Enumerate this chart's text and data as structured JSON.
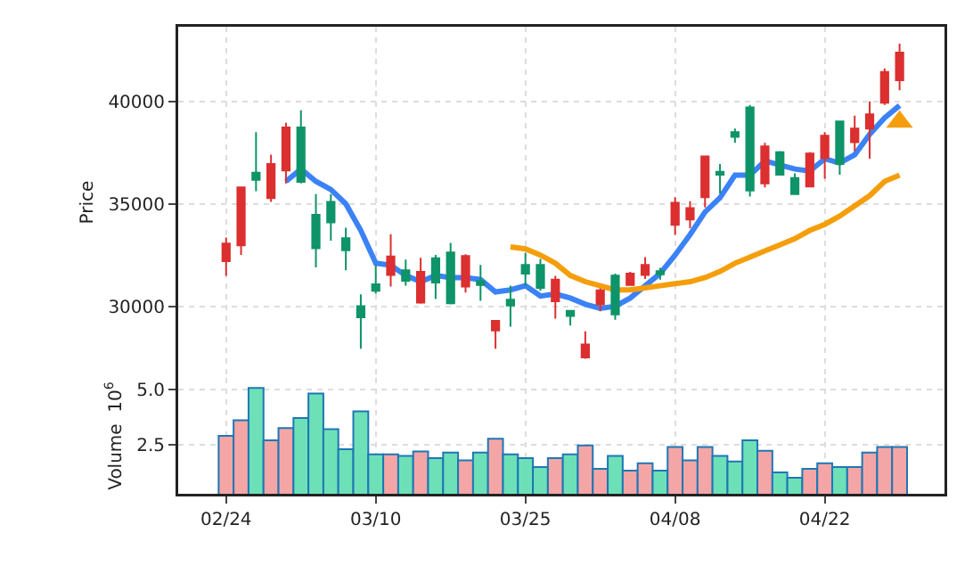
{
  "chart_data": [
    {
      "type": "candlestick",
      "ylabel": "Price",
      "categories": [
        null,
        null,
        null,
        null,
        null,
        null,
        null,
        null,
        null,
        null,
        null,
        null,
        null,
        null,
        null,
        null,
        null,
        null,
        null,
        null,
        null,
        null,
        null,
        null,
        null,
        null,
        null,
        null,
        null,
        null,
        null,
        null,
        null,
        null,
        null,
        null,
        null,
        null,
        null,
        null,
        null,
        null,
        null,
        null,
        null,
        null
      ],
      "ohlc": [
        [
          32200,
          33350,
          31480,
          33060
        ],
        [
          32970,
          35850,
          32510,
          35800
        ],
        [
          36520,
          38500,
          35620,
          36170
        ],
        [
          35280,
          37400,
          35100,
          36950
        ],
        [
          36630,
          38960,
          36000,
          38730
        ],
        [
          38730,
          39570,
          36000,
          36080
        ],
        [
          34470,
          35480,
          31900,
          32830
        ],
        [
          35100,
          35480,
          33200,
          34100
        ],
        [
          33320,
          33840,
          31760,
          32740
        ],
        [
          30000,
          30580,
          27930,
          29460
        ],
        [
          31070,
          32020,
          30610,
          30750
        ],
        [
          31530,
          33520,
          30960,
          32430
        ],
        [
          31760,
          32280,
          31010,
          31250
        ],
        [
          30180,
          32370,
          30120,
          31680
        ],
        [
          32340,
          32510,
          30350,
          31160
        ],
        [
          32630,
          33090,
          30090,
          30150
        ],
        [
          30960,
          32540,
          30670,
          32450
        ],
        [
          31220,
          32020,
          30270,
          31040
        ],
        [
          28820,
          29290,
          27930,
          29290
        ],
        [
          30320,
          31010,
          29000,
          30040
        ],
        [
          32020,
          32600,
          31010,
          31590
        ],
        [
          32020,
          32310,
          30760,
          30900
        ],
        [
          30240,
          31480,
          29400,
          31300
        ],
        [
          29780,
          29800,
          29060,
          29520
        ],
        [
          27500,
          28770,
          27440,
          28130
        ],
        [
          30090,
          30870,
          29750,
          30780
        ],
        [
          31500,
          31590,
          29340,
          29600
        ],
        [
          31040,
          31680,
          31040,
          31590
        ],
        [
          31530,
          32400,
          31330,
          32020
        ],
        [
          31710,
          31880,
          31300,
          31560
        ],
        [
          33980,
          35330,
          33490,
          35050
        ],
        [
          34240,
          35130,
          33810,
          34790
        ],
        [
          35330,
          37320,
          34820,
          37320
        ],
        [
          36570,
          36950,
          35510,
          36430
        ],
        [
          38500,
          38680,
          37980,
          38270
        ],
        [
          39710,
          39830,
          35360,
          35650
        ],
        [
          36000,
          37980,
          35800,
          37810
        ],
        [
          37520,
          37580,
          36430,
          36430
        ],
        [
          36260,
          36490,
          35480,
          35480
        ],
        [
          35850,
          37520,
          35820,
          37460
        ],
        [
          37240,
          38500,
          36230,
          38330
        ],
        [
          39020,
          39050,
          36430,
          36950
        ],
        [
          38010,
          39310,
          37580,
          38680
        ],
        [
          38680,
          40000,
          37210,
          39370
        ],
        [
          39940,
          41610,
          39830,
          41440
        ],
        [
          41040,
          42820,
          40550,
          42390
        ]
      ],
      "colors": [
        "#dc2f2f",
        "#dc2f2f",
        "#0e9468",
        "#dc2f2f",
        "#dc2f2f",
        "#0e9468",
        "#0e9468",
        "#0e9468",
        "#0e9468",
        "#0e9468",
        "#0e9468",
        "#dc2f2f",
        "#0e9468",
        "#dc2f2f",
        "#0e9468",
        "#0e9468",
        "#dc2f2f",
        "#0e9468",
        "#dc2f2f",
        "#0e9468",
        "#0e9468",
        "#0e9468",
        "#dc2f2f",
        "#0e9468",
        "#dc2f2f",
        "#dc2f2f",
        "#0e9468",
        "#dc2f2f",
        "#dc2f2f",
        "#0e9468",
        "#dc2f2f",
        "#dc2f2f",
        "#dc2f2f",
        "#0e9468",
        "#0e9468",
        "#0e9468",
        "#dc2f2f",
        "#0e9468",
        "#0e9468",
        "#dc2f2f",
        "#dc2f2f",
        "#0e9468",
        "#dc2f2f",
        "#dc2f2f",
        "#dc2f2f",
        "#dc2f2f"
      ],
      "series": [
        {
          "type": "line",
          "color": "#3b82f6",
          "values": [
            null,
            null,
            null,
            null,
            36100,
            36700,
            36100,
            35700,
            35000,
            33700,
            32100,
            32000,
            31500,
            31200,
            31500,
            31400,
            31400,
            31300,
            30700,
            30800,
            31000,
            30500,
            30600,
            30400,
            30100,
            29900,
            30000,
            30400,
            31000,
            31600,
            32500,
            33500,
            34600,
            35300,
            36400,
            36400,
            37100,
            36900,
            36700,
            36600,
            37200,
            37000,
            37400,
            38400,
            39200,
            39800
          ]
        },
        {
          "type": "line",
          "color": "#f59e0b",
          "values": [
            null,
            null,
            null,
            null,
            null,
            null,
            null,
            null,
            null,
            null,
            null,
            null,
            null,
            null,
            null,
            null,
            null,
            null,
            null,
            32900,
            32800,
            32500,
            32100,
            31500,
            31200,
            31000,
            30800,
            30800,
            30900,
            31000,
            31100,
            31200,
            31400,
            31700,
            32100,
            32400,
            32700,
            33000,
            33300,
            33700,
            34000,
            34400,
            34900,
            35400,
            36100,
            36400
          ]
        },
        {
          "type": "scatter",
          "marker": "triangle",
          "color": "#f59e0b",
          "values": [
            null,
            null,
            null,
            null,
            null,
            null,
            null,
            null,
            null,
            null,
            null,
            null,
            null,
            null,
            null,
            null,
            null,
            null,
            null,
            null,
            null,
            null,
            null,
            null,
            null,
            null,
            null,
            null,
            null,
            null,
            null,
            null,
            null,
            null,
            null,
            null,
            null,
            null,
            null,
            null,
            null,
            null,
            null,
            null,
            null,
            39000
          ]
        }
      ],
      "ylim": [
        26500,
        43650
      ],
      "yticks": [
        30000,
        35000,
        40000
      ],
      "grid": true,
      "tick_labels": "y"
    },
    {
      "type": "bar",
      "ylabel": "Volume  10$^{6}$",
      "categories": [
        "02/24",
        null,
        null,
        null,
        null,
        null,
        null,
        null,
        null,
        null,
        "03/10",
        null,
        null,
        null,
        null,
        null,
        null,
        null,
        null,
        null,
        "03/25",
        null,
        null,
        null,
        null,
        null,
        null,
        null,
        null,
        null,
        "04/08",
        null,
        null,
        null,
        null,
        null,
        null,
        null,
        null,
        null,
        "04/22",
        null,
        null,
        null,
        null,
        null
      ],
      "values": [
        2.9,
        3.6,
        5.05,
        2.7,
        3.25,
        3.7,
        4.8,
        3.2,
        2.3,
        4.0,
        2.07,
        2.07,
        2.0,
        2.2,
        1.9,
        2.15,
        1.8,
        2.15,
        2.77,
        2.07,
        1.9,
        1.5,
        1.9,
        2.07,
        2.47,
        1.42,
        2.0,
        1.34,
        1.67,
        1.34,
        2.4,
        1.8,
        2.4,
        2.0,
        1.75,
        2.7,
        2.23,
        1.26,
        1.02,
        1.42,
        1.67,
        1.5,
        1.5,
        2.15,
        2.4,
        2.4
      ],
      "colors": [
        "#f4a6a6",
        "#f4a6a6",
        "#6ee0b8",
        "#f4a6a6",
        "#f4a6a6",
        "#6ee0b8",
        "#6ee0b8",
        "#6ee0b8",
        "#6ee0b8",
        "#6ee0b8",
        "#6ee0b8",
        "#f4a6a6",
        "#6ee0b8",
        "#f4a6a6",
        "#6ee0b8",
        "#6ee0b8",
        "#f4a6a6",
        "#6ee0b8",
        "#f4a6a6",
        "#6ee0b8",
        "#6ee0b8",
        "#6ee0b8",
        "#f4a6a6",
        "#6ee0b8",
        "#f4a6a6",
        "#f4a6a6",
        "#6ee0b8",
        "#f4a6a6",
        "#f4a6a6",
        "#6ee0b8",
        "#f4a6a6",
        "#f4a6a6",
        "#f4a6a6",
        "#6ee0b8",
        "#6ee0b8",
        "#6ee0b8",
        "#f4a6a6",
        "#6ee0b8",
        "#6ee0b8",
        "#f4a6a6",
        "#f4a6a6",
        "#6ee0b8",
        "#f4a6a6",
        "#f4a6a6",
        "#f4a6a6",
        "#f4a6a6"
      ],
      "ylim": [
        0.3,
        5.5
      ],
      "yticks": [
        2.5,
        {
          "value": 5,
          "label": "5.0"
        }
      ],
      "grid": true
    }
  ]
}
